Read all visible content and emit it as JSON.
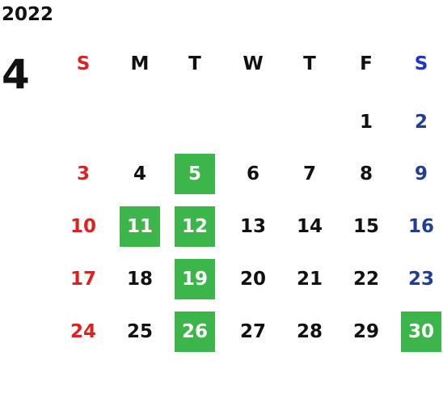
{
  "calendar": {
    "year": "2022",
    "month": "4",
    "weekday_headers": [
      "S",
      "M",
      "T",
      "W",
      "T",
      "F",
      "S"
    ],
    "colors": {
      "sunday": "#e02020",
      "saturday": "#1f3f96",
      "saturday_header": "#1b32d6",
      "highlight_bg": "#3cb54a",
      "highlight_text": "#ffffff",
      "default": "#111111"
    },
    "weeks": [
      [
        {
          "day": "",
          "highlight": false
        },
        {
          "day": "",
          "highlight": false
        },
        {
          "day": "",
          "highlight": false
        },
        {
          "day": "",
          "highlight": false
        },
        {
          "day": "",
          "highlight": false
        },
        {
          "day": "1",
          "highlight": false
        },
        {
          "day": "2",
          "highlight": false
        }
      ],
      [
        {
          "day": "3",
          "highlight": false
        },
        {
          "day": "4",
          "highlight": false
        },
        {
          "day": "5",
          "highlight": true
        },
        {
          "day": "6",
          "highlight": false
        },
        {
          "day": "7",
          "highlight": false
        },
        {
          "day": "8",
          "highlight": false
        },
        {
          "day": "9",
          "highlight": false
        }
      ],
      [
        {
          "day": "10",
          "highlight": false
        },
        {
          "day": "11",
          "highlight": true
        },
        {
          "day": "12",
          "highlight": true
        },
        {
          "day": "13",
          "highlight": false
        },
        {
          "day": "14",
          "highlight": false
        },
        {
          "day": "15",
          "highlight": false
        },
        {
          "day": "16",
          "highlight": false
        }
      ],
      [
        {
          "day": "17",
          "highlight": false
        },
        {
          "day": "18",
          "highlight": false
        },
        {
          "day": "19",
          "highlight": true
        },
        {
          "day": "20",
          "highlight": false
        },
        {
          "day": "21",
          "highlight": false
        },
        {
          "day": "22",
          "highlight": false
        },
        {
          "day": "23",
          "highlight": false
        }
      ],
      [
        {
          "day": "24",
          "highlight": false
        },
        {
          "day": "25",
          "highlight": false
        },
        {
          "day": "26",
          "highlight": true
        },
        {
          "day": "27",
          "highlight": false
        },
        {
          "day": "28",
          "highlight": false
        },
        {
          "day": "29",
          "highlight": false
        },
        {
          "day": "30",
          "highlight": true
        }
      ]
    ]
  }
}
